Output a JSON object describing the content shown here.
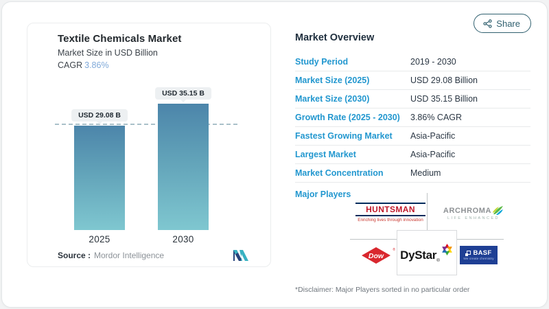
{
  "share": {
    "label": "Share"
  },
  "icons": {
    "share_icon": "share-nodes",
    "mordor_logo": "mordor-intelligence-mark",
    "archroma_leaf": "archroma-leaf-mark",
    "dow_diamond": "dow-diamond-mark",
    "dystar_pinwheel": "dystar-pinwheel-mark",
    "basf_squares": "basf-squares-mark"
  },
  "chart_panel": {
    "title": "Textile Chemicals Market",
    "subtitle": "Market Size in USD Billion",
    "cagr_label": "CAGR",
    "cagr_value": "3.86%",
    "source_label": "Source :",
    "source_value": "Mordor Intelligence"
  },
  "chart_data": {
    "type": "bar",
    "title": "Textile Chemicals Market",
    "ylabel": "Market Size in USD Billion",
    "categories": [
      "2025",
      "2030"
    ],
    "values": [
      29.08,
      35.15
    ],
    "bar_labels": [
      "USD 29.08 B",
      "USD 35.15 B"
    ],
    "cagr_percent": 3.86,
    "reference_line_value": 29.08,
    "grid": false,
    "bar_gradient": [
      "#4c85aa",
      "#7fc7d0"
    ],
    "reference_line_color": "#a9c0c9"
  },
  "overview": {
    "title": "Market Overview",
    "rows": [
      {
        "label": "Study Period",
        "value": "2019 - 2030"
      },
      {
        "label": "Market Size (2025)",
        "value": "USD 29.08 Billion"
      },
      {
        "label": "Market Size (2030)",
        "value": "USD 35.15 Billion"
      },
      {
        "label": "Growth Rate (2025 - 2030)",
        "value": "3.86% CAGR"
      },
      {
        "label": "Fastest Growing Market",
        "value": "Asia-Pacific"
      },
      {
        "label": "Largest Market",
        "value": "Asia-Pacific"
      },
      {
        "label": "Market Concentration",
        "value": "Medium"
      }
    ],
    "major_players_label": "Major Players",
    "disclaimer": "*Disclaimer: Major Players sorted in no particular order"
  },
  "players": {
    "huntsman": {
      "name": "HUNTSMAN",
      "tagline": "Enriching lives through innovation"
    },
    "archroma": {
      "name": "ARCHROMA",
      "tagline": "LIFE ENHANCED"
    },
    "dow": {
      "name": "Dow"
    },
    "dystar": {
      "name": "DyStar",
      "reg": "®"
    },
    "basf": {
      "name": "BASF",
      "tagline": "We create chemistry"
    }
  },
  "colors": {
    "accent_blue": "#2297cf",
    "heading_navy": "#20303f",
    "share_teal": "#30606f",
    "cagr_light_blue": "#7fa9d9"
  }
}
